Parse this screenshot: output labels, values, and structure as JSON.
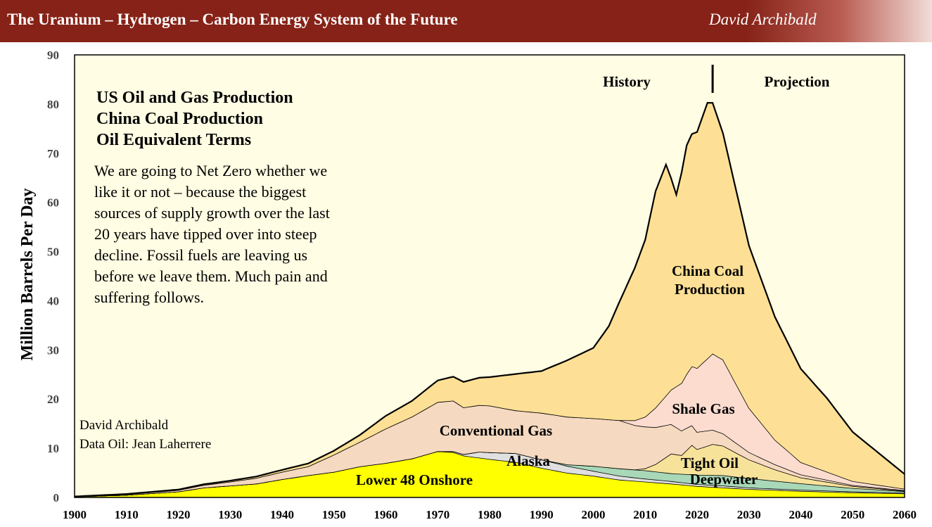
{
  "banner": {
    "title": "The Uranium – Hydrogen – Carbon Energy System of the Future",
    "author": "David Archibald"
  },
  "chart_data": {
    "type": "area",
    "stacked": true,
    "ylabel": "Million Barrels Per Day",
    "xlabel": "",
    "xlim": [
      1900,
      2060
    ],
    "ylim": [
      0,
      90
    ],
    "x_ticks": [
      1900,
      1910,
      1920,
      1930,
      1940,
      1950,
      1960,
      1970,
      1980,
      1990,
      2000,
      2010,
      2020,
      2030,
      2040,
      2050,
      2060
    ],
    "y_ticks": [
      0,
      10,
      20,
      30,
      40,
      50,
      60,
      70,
      80,
      90
    ],
    "headings": [
      "US  Oil and Gas Production",
      "China Coal Production",
      "Oil Equivalent Terms"
    ],
    "annotation": [
      "We are going to Net Zero whether we",
      "like it or not – because the biggest",
      "sources of supply growth over the last",
      "20 years have tipped over into steep",
      "decline. Fossil fuels are leaving us",
      "before we leave them. Much pain and",
      "suffering follows."
    ],
    "credits": [
      "David Archibald",
      "Data Oil: Jean Laherrere"
    ],
    "history_label": "History",
    "projection_label": "Projection",
    "divider_year": 2023,
    "series": [
      {
        "name": "Lower 48 Onshore",
        "label": "Lower 48 Onshore",
        "color": "#ffff00",
        "points": [
          [
            1900,
            0.2
          ],
          [
            1910,
            0.5
          ],
          [
            1920,
            1.2
          ],
          [
            1925,
            2.0
          ],
          [
            1930,
            2.4
          ],
          [
            1935,
            2.8
          ],
          [
            1940,
            3.7
          ],
          [
            1945,
            4.5
          ],
          [
            1950,
            5.2
          ],
          [
            1955,
            6.3
          ],
          [
            1960,
            7.0
          ],
          [
            1965,
            7.9
          ],
          [
            1970,
            9.4
          ],
          [
            1973,
            9.2
          ],
          [
            1975,
            8.5
          ],
          [
            1980,
            7.8
          ],
          [
            1985,
            7.2
          ],
          [
            1990,
            6.0
          ],
          [
            1995,
            5.0
          ],
          [
            2000,
            4.4
          ],
          [
            2005,
            3.6
          ],
          [
            2010,
            3.2
          ],
          [
            2015,
            2.8
          ],
          [
            2020,
            2.3
          ],
          [
            2025,
            2.0
          ],
          [
            2030,
            1.7
          ],
          [
            2040,
            1.3
          ],
          [
            2050,
            1.0
          ],
          [
            2060,
            0.8
          ]
        ]
      },
      {
        "name": "Alaska",
        "label": "Alaska",
        "color": "#e0e0e0",
        "points": [
          [
            1900,
            0
          ],
          [
            1970,
            0
          ],
          [
            1975,
            0.3
          ],
          [
            1978,
            1.2
          ],
          [
            1985,
            1.8
          ],
          [
            1990,
            1.7
          ],
          [
            1995,
            1.4
          ],
          [
            2000,
            1.0
          ],
          [
            2005,
            0.8
          ],
          [
            2010,
            0.6
          ],
          [
            2015,
            0.5
          ],
          [
            2020,
            0.4
          ],
          [
            2025,
            0.4
          ],
          [
            2030,
            0.3
          ],
          [
            2040,
            0.25
          ],
          [
            2050,
            0.2
          ],
          [
            2060,
            0.15
          ]
        ]
      },
      {
        "name": "Deepwater",
        "label": "Deepwater",
        "color": "#a8d8b8",
        "points": [
          [
            1900,
            0
          ],
          [
            1990,
            0
          ],
          [
            1995,
            0.3
          ],
          [
            2000,
            1.0
          ],
          [
            2005,
            1.5
          ],
          [
            2010,
            1.7
          ],
          [
            2015,
            1.6
          ],
          [
            2020,
            1.9
          ],
          [
            2025,
            2.1
          ],
          [
            2030,
            1.9
          ],
          [
            2040,
            1.3
          ],
          [
            2050,
            0.7
          ],
          [
            2060,
            0.3
          ]
        ]
      },
      {
        "name": "Tight Oil",
        "label": "Tight Oil",
        "color": "#f7e29a",
        "points": [
          [
            1900,
            0
          ],
          [
            2008,
            0
          ],
          [
            2010,
            0.4
          ],
          [
            2012,
            1.5
          ],
          [
            2015,
            4.0
          ],
          [
            2017,
            3.8
          ],
          [
            2019,
            6.0
          ],
          [
            2020,
            5.2
          ],
          [
            2023,
            6.3
          ],
          [
            2025,
            6.0
          ],
          [
            2030,
            3.8
          ],
          [
            2035,
            2.3
          ],
          [
            2040,
            1.2
          ],
          [
            2050,
            0.4
          ],
          [
            2060,
            0.1
          ]
        ]
      },
      {
        "name": "Conventional Gas",
        "label": "Conventional Gas",
        "color": "#f5d9c0",
        "points": [
          [
            1900,
            0
          ],
          [
            1920,
            0.3
          ],
          [
            1930,
            0.8
          ],
          [
            1940,
            1.5
          ],
          [
            1945,
            1.8
          ],
          [
            1950,
            3.5
          ],
          [
            1955,
            5.0
          ],
          [
            1960,
            7.0
          ],
          [
            1965,
            8.5
          ],
          [
            1970,
            10.0
          ],
          [
            1973,
            10.3
          ],
          [
            1975,
            9.5
          ],
          [
            1980,
            9.5
          ],
          [
            1985,
            8.7
          ],
          [
            1990,
            9.5
          ],
          [
            1995,
            9.7
          ],
          [
            2000,
            9.7
          ],
          [
            2005,
            9.8
          ],
          [
            2010,
            8.5
          ],
          [
            2015,
            6.0
          ],
          [
            2020,
            3.5
          ],
          [
            2025,
            2.5
          ],
          [
            2030,
            1.5
          ],
          [
            2040,
            0.6
          ],
          [
            2050,
            0.2
          ],
          [
            2060,
            0.1
          ]
        ]
      },
      {
        "name": "Shale Gas",
        "label": "Shale Gas",
        "color": "#fddcd0",
        "points": [
          [
            1900,
            0
          ],
          [
            2005,
            0
          ],
          [
            2008,
            1.0
          ],
          [
            2010,
            2.0
          ],
          [
            2013,
            5.0
          ],
          [
            2015,
            7.0
          ],
          [
            2018,
            11.0
          ],
          [
            2020,
            13.0
          ],
          [
            2023,
            15.5
          ],
          [
            2025,
            15.0
          ],
          [
            2030,
            9.0
          ],
          [
            2035,
            5.0
          ],
          [
            2040,
            2.5
          ],
          [
            2050,
            0.8
          ],
          [
            2060,
            0.3
          ]
        ]
      },
      {
        "name": "China Coal Production",
        "label": "China Coal Production",
        "color": "#fde095",
        "points": [
          [
            1900,
            0
          ],
          [
            1920,
            0.1
          ],
          [
            1930,
            0.2
          ],
          [
            1940,
            0.4
          ],
          [
            1950,
            0.8
          ],
          [
            1955,
            1.4
          ],
          [
            1960,
            2.6
          ],
          [
            1965,
            3.2
          ],
          [
            1970,
            4.4
          ],
          [
            1975,
            5.2
          ],
          [
            1980,
            5.8
          ],
          [
            1985,
            7.4
          ],
          [
            1990,
            8.5
          ],
          [
            1995,
            11.5
          ],
          [
            2000,
            14.3
          ],
          [
            2003,
            19.0
          ],
          [
            2005,
            24.0
          ],
          [
            2008,
            31.0
          ],
          [
            2010,
            36.0
          ],
          [
            2012,
            44.0
          ],
          [
            2014,
            47.0
          ],
          [
            2016,
            39.0
          ],
          [
            2018,
            46.5
          ],
          [
            2020,
            48.0
          ],
          [
            2022,
            52.0
          ],
          [
            2023,
            51.0
          ],
          [
            2025,
            46.0
          ],
          [
            2030,
            33.0
          ],
          [
            2035,
            25.0
          ],
          [
            2040,
            19.0
          ],
          [
            2045,
            15.0
          ],
          [
            2050,
            10.0
          ],
          [
            2055,
            6.5
          ],
          [
            2060,
            3.0
          ]
        ]
      }
    ]
  }
}
